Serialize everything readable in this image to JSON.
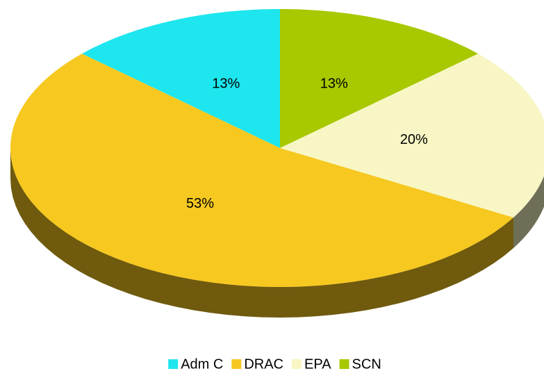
{
  "chart_data": {
    "type": "pie",
    "categories": [
      "Adm C",
      "DRAC",
      "EPA",
      "SCN"
    ],
    "values": [
      13,
      53,
      20,
      13
    ],
    "value_labels": [
      "13%",
      "53%",
      "20%",
      "13%"
    ],
    "colors": [
      "#1ee6ee",
      "#f6c820",
      "#f7f6c4",
      "#a8c800"
    ],
    "legend": "bottom"
  }
}
